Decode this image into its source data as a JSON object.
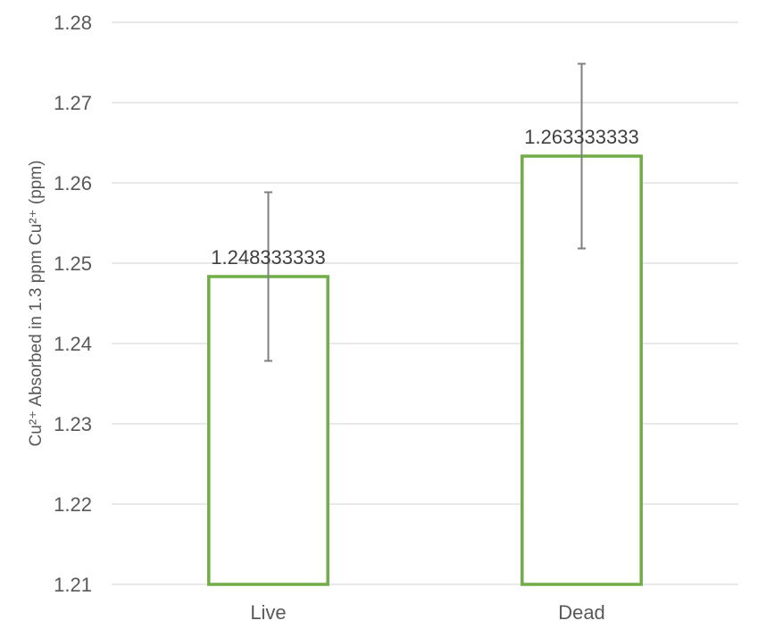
{
  "chart_data": {
    "type": "bar",
    "categories": [
      "Live",
      "Dead"
    ],
    "series": [
      {
        "values": [
          1.248333333,
          1.263333333
        ],
        "error": [
          0.0105,
          0.0115
        ],
        "data_labels": [
          "1.248333333",
          "1.263333333"
        ]
      }
    ],
    "ylabel": "Cu²⁺ Absorbed in 1.3 ppm Cu²⁺ (ppm)",
    "ylim": [
      1.21,
      1.28
    ],
    "yticks": [
      "1.21",
      "1.22",
      "1.23",
      "1.24",
      "1.25",
      "1.26",
      "1.27",
      "1.28"
    ],
    "grid": true,
    "legend": "none",
    "colors": {
      "bar_outline": "#70ad47",
      "bar_fill": "#ffffff",
      "grid": "#d9d9d9",
      "error_bar": "#7f7f7f",
      "text": "#595959"
    }
  }
}
